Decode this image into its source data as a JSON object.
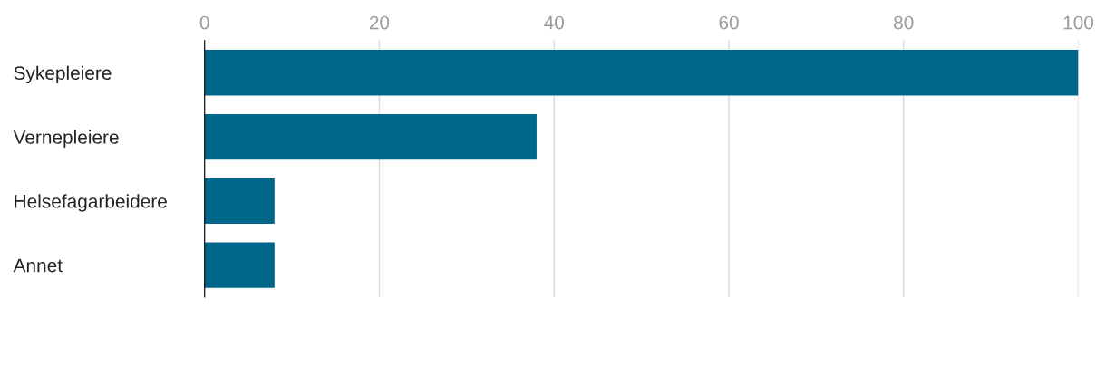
{
  "chart_data": {
    "type": "bar",
    "orientation": "horizontal",
    "categories": [
      "Sykepleiere",
      "Vernepleiere",
      "Helsefagarbeidere",
      "Annet"
    ],
    "values": [
      100,
      38,
      8,
      8
    ],
    "color": "#00678a",
    "xlim": [
      0,
      100
    ],
    "xticks": [
      0,
      20,
      40,
      60,
      80,
      100
    ],
    "grid": "x"
  }
}
